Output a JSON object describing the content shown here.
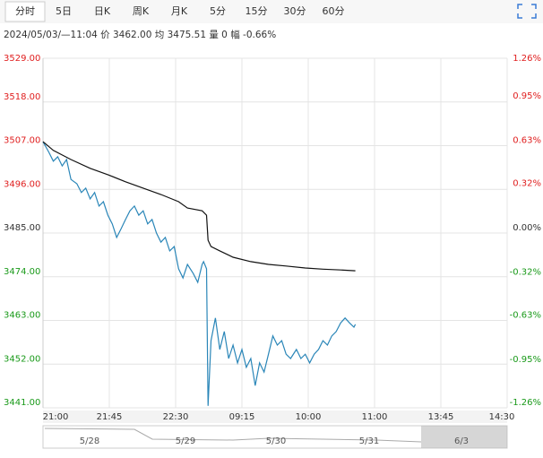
{
  "tabs": [
    "分时",
    "5日",
    "日K",
    "周K",
    "月K",
    "5分",
    "15分",
    "30分",
    "60分"
  ],
  "info": "2024/05/03/—11:04 价 3462.00 均 3475.51 量 0 幅 -0.66%",
  "chart_data": {
    "type": "line",
    "up_color": "#e02020",
    "down_color": "#1a9a1a",
    "flat_color": "#333333",
    "grid": true,
    "xlim": [
      0,
      315
    ],
    "xticks": [
      {
        "value": 0,
        "label": "21:00"
      },
      {
        "value": 45,
        "label": "21:45"
      },
      {
        "value": 90,
        "label": "22:30"
      },
      {
        "value": 135,
        "label": "09:15"
      },
      {
        "value": 180,
        "label": "10:00"
      },
      {
        "value": 225,
        "label": "11:00"
      },
      {
        "value": 270,
        "label": "13:45"
      },
      {
        "value": 315,
        "label": "14:30"
      }
    ],
    "ylim": [
      3441,
      3529
    ],
    "yticks": [
      {
        "value": 3529,
        "label": "3529.00"
      },
      {
        "value": 3518,
        "label": "3518.00"
      },
      {
        "value": 3507,
        "label": "3507.00"
      },
      {
        "value": 3496,
        "label": "3496.00"
      },
      {
        "value": 3485,
        "label": "3485.00"
      },
      {
        "value": 3474,
        "label": "3474.00"
      },
      {
        "value": 3463,
        "label": "3463.00"
      },
      {
        "value": 3452,
        "label": "3452.00"
      },
      {
        "value": 3441,
        "label": "3441.00"
      }
    ],
    "y2lim": [
      -1.26,
      1.26
    ],
    "y2ticks": [
      {
        "value": 1.26,
        "label": "1.26%"
      },
      {
        "value": 0.95,
        "label": "0.95%"
      },
      {
        "value": 0.63,
        "label": "0.63%"
      },
      {
        "value": 0.32,
        "label": "0.32%"
      },
      {
        "value": 0,
        "label": "0.00%"
      },
      {
        "value": -0.32,
        "label": "-0.32%"
      },
      {
        "value": -0.63,
        "label": "-0.63%"
      },
      {
        "value": -0.95,
        "label": "-0.95%"
      },
      {
        "value": -1.26,
        "label": "-1.26%"
      }
    ],
    "series": [
      {
        "color": "#2a86b8",
        "x": [
          0,
          4,
          7,
          10,
          13,
          16,
          19,
          23,
          26,
          29,
          32,
          35,
          38,
          41,
          44,
          47,
          50,
          53,
          56,
          59,
          62,
          65,
          68,
          71,
          74,
          77,
          80,
          83,
          86,
          89,
          92,
          95,
          98,
          102,
          105,
          108,
          109,
          111,
          112,
          114,
          117,
          120,
          123,
          126,
          129,
          132,
          135,
          138,
          141,
          144,
          147,
          150,
          153,
          156,
          159,
          162,
          165,
          168,
          172,
          175,
          178,
          181,
          184,
          187,
          190,
          193,
          196,
          199,
          202,
          205,
          208,
          211,
          212
        ],
        "values": [
          3508.0,
          3505.3,
          3503.1,
          3504.2,
          3501.9,
          3503.5,
          3498.5,
          3497.4,
          3495.2,
          3496.3,
          3493.6,
          3495.2,
          3491.8,
          3492.9,
          3489.5,
          3487.3,
          3483.9,
          3486.1,
          3488.4,
          3490.6,
          3491.8,
          3489.5,
          3490.6,
          3487.3,
          3488.4,
          3485.0,
          3482.7,
          3483.9,
          3480.5,
          3481.6,
          3476.0,
          3473.7,
          3477.1,
          3474.8,
          3472.6,
          3477.1,
          3477.8,
          3476.0,
          3441.5,
          3457.9,
          3463.6,
          3455.7,
          3460.2,
          3453.4,
          3456.8,
          3452.3,
          3455.7,
          3451.2,
          3453.4,
          3446.6,
          3452.3,
          3450.0,
          3454.5,
          3459.1,
          3456.8,
          3457.9,
          3454.5,
          3453.4,
          3455.7,
          3453.4,
          3454.5,
          3452.3,
          3454.5,
          3455.7,
          3457.9,
          3456.8,
          3459.1,
          3460.2,
          3462.4,
          3463.6,
          3462.4,
          3461.3,
          3462.0
        ]
      },
      {
        "color": "#111111",
        "x": [
          0,
          7,
          19,
          32,
          44,
          56,
          68,
          80,
          92,
          98,
          108,
          111,
          112,
          114,
          120,
          129,
          141,
          153,
          165,
          178,
          190,
          202,
          212
        ],
        "values": [
          3508.0,
          3505.8,
          3503.5,
          3501.3,
          3499.7,
          3497.9,
          3496.3,
          3494.7,
          3492.9,
          3491.3,
          3490.6,
          3489.5,
          3483.2,
          3481.6,
          3480.5,
          3478.9,
          3477.8,
          3477.1,
          3476.7,
          3476.2,
          3475.9,
          3475.7,
          3475.5
        ]
      }
    ]
  },
  "navigator": {
    "labels": [
      "5/28",
      "5/29",
      "5/30",
      "5/31",
      "6/3"
    ]
  }
}
